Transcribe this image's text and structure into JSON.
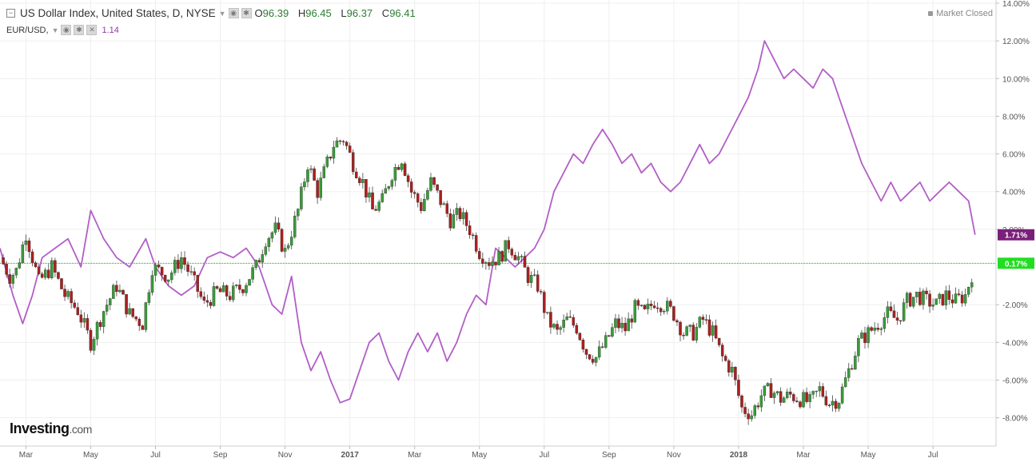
{
  "header": {
    "title": "US Dollar Index, United States, D, NYSE",
    "ohlc": [
      {
        "key": "O",
        "value": "96.39"
      },
      {
        "key": "H",
        "value": "96.45"
      },
      {
        "key": "L",
        "value": "96.37"
      },
      {
        "key": "C",
        "value": "96.41"
      }
    ],
    "overlay_label": "EUR/USD,",
    "overlay_value": "1.14",
    "market_status": "Market Closed"
  },
  "logo": {
    "main": "Investing",
    "suffix": ".com"
  },
  "colors": {
    "purple": "#b25ec7",
    "up_body": "#3a9a3a",
    "down_body": "#a82020",
    "badge_purple": "#7a1f7a",
    "badge_green": "#22dd22",
    "zero_line": "#1f9a1f"
  },
  "chart_data": {
    "type": "line",
    "y_axis": {
      "range": [
        -9.5,
        14.0
      ],
      "ticks": [
        {
          "v": 14,
          "label": "14.00%"
        },
        {
          "v": 12,
          "label": "12.00%"
        },
        {
          "v": 10,
          "label": "10.00%"
        },
        {
          "v": 8,
          "label": "8.00%"
        },
        {
          "v": 6,
          "label": "6.00%"
        },
        {
          "v": 4,
          "label": "4.00%"
        },
        {
          "v": 2,
          "label": "2.00%"
        },
        {
          "v": -2,
          "label": "-2.00%"
        },
        {
          "v": -4,
          "label": "-4.00%"
        },
        {
          "v": -6,
          "label": "-6.00%"
        },
        {
          "v": -8,
          "label": "-8.00%"
        }
      ]
    },
    "x_axis": {
      "range": [
        0,
        30.5
      ],
      "ticks": [
        {
          "m": 0.8,
          "label": "Mar"
        },
        {
          "m": 2.8,
          "label": "May"
        },
        {
          "m": 4.8,
          "label": "Jul"
        },
        {
          "m": 6.8,
          "label": "Sep"
        },
        {
          "m": 8.8,
          "label": "Nov"
        },
        {
          "m": 10.8,
          "label": "2017",
          "bold": true
        },
        {
          "m": 12.8,
          "label": "Mar"
        },
        {
          "m": 14.8,
          "label": "May"
        },
        {
          "m": 16.8,
          "label": "Jul"
        },
        {
          "m": 18.8,
          "label": "Sep"
        },
        {
          "m": 20.8,
          "label": "Nov"
        },
        {
          "m": 22.8,
          "label": "2018",
          "bold": true
        },
        {
          "m": 24.8,
          "label": "Mar"
        },
        {
          "m": 26.8,
          "label": "May"
        },
        {
          "m": 28.8,
          "label": "Jul"
        }
      ]
    },
    "zero_line": 0.2,
    "series": [
      {
        "name": "US Dollar Index",
        "style": "candlestick",
        "last_label": "0.17%",
        "points": [
          [
            0,
            0.5
          ],
          [
            0.3,
            -0.5
          ],
          [
            0.5,
            -0.2
          ],
          [
            0.8,
            1.8
          ],
          [
            1.2,
            -0.8
          ],
          [
            1.6,
            0.0
          ],
          [
            2.0,
            -1.5
          ],
          [
            2.4,
            -2.3
          ],
          [
            2.8,
            -4.0
          ],
          [
            3.2,
            -2.3
          ],
          [
            3.6,
            -1.0
          ],
          [
            4.0,
            -2.5
          ],
          [
            4.4,
            -3.0
          ],
          [
            4.7,
            0.0
          ],
          [
            5.2,
            -0.5
          ],
          [
            5.6,
            0.5
          ],
          [
            5.9,
            -0.5
          ],
          [
            6.3,
            -2.0
          ],
          [
            6.7,
            -1.3
          ],
          [
            7.1,
            -1.5
          ],
          [
            7.5,
            -1.0
          ],
          [
            7.9,
            0.0
          ],
          [
            8.2,
            1.5
          ],
          [
            8.5,
            2.0
          ],
          [
            8.8,
            0.8
          ],
          [
            9.2,
            3.0
          ],
          [
            9.5,
            5.5
          ],
          [
            9.8,
            4.0
          ],
          [
            10.0,
            5.0
          ],
          [
            10.3,
            6.5
          ],
          [
            10.6,
            6.8
          ],
          [
            10.9,
            5.5
          ],
          [
            11.2,
            4.5
          ],
          [
            11.5,
            3.0
          ],
          [
            11.8,
            3.5
          ],
          [
            12.1,
            5.0
          ],
          [
            12.4,
            5.8
          ],
          [
            12.7,
            4.0
          ],
          [
            13.0,
            3.2
          ],
          [
            13.3,
            4.5
          ],
          [
            13.6,
            3.5
          ],
          [
            13.9,
            2.5
          ],
          [
            14.2,
            2.8
          ],
          [
            14.5,
            2.0
          ],
          [
            14.8,
            0.8
          ],
          [
            15.1,
            0.3
          ],
          [
            15.4,
            0.5
          ],
          [
            15.7,
            1.2
          ],
          [
            16.0,
            0.5
          ],
          [
            16.3,
            -0.5
          ],
          [
            16.6,
            -1.0
          ],
          [
            16.9,
            -2.8
          ],
          [
            17.2,
            -3.5
          ],
          [
            17.5,
            -2.8
          ],
          [
            17.8,
            -3.2
          ],
          [
            18.1,
            -4.5
          ],
          [
            18.4,
            -4.8
          ],
          [
            18.7,
            -4.0
          ],
          [
            19.0,
            -3.0
          ],
          [
            19.3,
            -3.3
          ],
          [
            19.6,
            -2.2
          ],
          [
            19.9,
            -2.5
          ],
          [
            20.2,
            -1.8
          ],
          [
            20.5,
            -2.0
          ],
          [
            20.8,
            -2.5
          ],
          [
            21.1,
            -3.5
          ],
          [
            21.4,
            -3.5
          ],
          [
            21.7,
            -2.8
          ],
          [
            22.0,
            -3.5
          ],
          [
            22.3,
            -4.8
          ],
          [
            22.6,
            -5.5
          ],
          [
            22.9,
            -7.5
          ],
          [
            23.2,
            -7.8
          ],
          [
            23.5,
            -6.8
          ],
          [
            23.8,
            -6.5
          ],
          [
            24.1,
            -7.0
          ],
          [
            24.4,
            -6.8
          ],
          [
            24.7,
            -7.0
          ],
          [
            25.0,
            -7.2
          ],
          [
            25.3,
            -6.5
          ],
          [
            25.6,
            -7.2
          ],
          [
            25.9,
            -7.0
          ],
          [
            26.2,
            -5.5
          ],
          [
            26.5,
            -4.0
          ],
          [
            26.8,
            -3.5
          ],
          [
            27.1,
            -3.0
          ],
          [
            27.4,
            -2.5
          ],
          [
            27.7,
            -2.8
          ],
          [
            28.0,
            -1.8
          ],
          [
            28.3,
            -1.5
          ],
          [
            28.6,
            -1.8
          ],
          [
            28.9,
            -2.0
          ],
          [
            29.2,
            -1.5
          ],
          [
            29.5,
            -1.8
          ],
          [
            29.8,
            -1.5
          ],
          [
            30.1,
            0.17
          ]
        ]
      },
      {
        "name": "EUR/USD",
        "style": "line",
        "last_label": "1.71%",
        "points": [
          [
            0,
            1.0
          ],
          [
            0.4,
            -1.5
          ],
          [
            0.7,
            -3.0
          ],
          [
            1.0,
            -1.5
          ],
          [
            1.3,
            0.5
          ],
          [
            1.7,
            1.0
          ],
          [
            2.1,
            1.5
          ],
          [
            2.5,
            0.0
          ],
          [
            2.8,
            3.0
          ],
          [
            3.2,
            1.5
          ],
          [
            3.6,
            0.5
          ],
          [
            4.0,
            0.0
          ],
          [
            4.5,
            1.5
          ],
          [
            4.8,
            0.0
          ],
          [
            5.2,
            -1.0
          ],
          [
            5.6,
            -1.5
          ],
          [
            6.0,
            -1.0
          ],
          [
            6.4,
            0.5
          ],
          [
            6.8,
            0.8
          ],
          [
            7.2,
            0.5
          ],
          [
            7.6,
            1.0
          ],
          [
            8.0,
            0.0
          ],
          [
            8.4,
            -2.0
          ],
          [
            8.7,
            -2.5
          ],
          [
            9.0,
            -0.5
          ],
          [
            9.3,
            -4.0
          ],
          [
            9.6,
            -5.5
          ],
          [
            9.9,
            -4.5
          ],
          [
            10.2,
            -6.0
          ],
          [
            10.5,
            -7.2
          ],
          [
            10.8,
            -7.0
          ],
          [
            11.1,
            -5.5
          ],
          [
            11.4,
            -4.0
          ],
          [
            11.7,
            -3.5
          ],
          [
            12.0,
            -5.0
          ],
          [
            12.3,
            -6.0
          ],
          [
            12.6,
            -4.5
          ],
          [
            12.9,
            -3.5
          ],
          [
            13.2,
            -4.5
          ],
          [
            13.5,
            -3.5
          ],
          [
            13.8,
            -5.0
          ],
          [
            14.1,
            -4.0
          ],
          [
            14.4,
            -2.5
          ],
          [
            14.7,
            -1.5
          ],
          [
            15.0,
            -2.0
          ],
          [
            15.3,
            1.0
          ],
          [
            15.6,
            0.5
          ],
          [
            15.9,
            0.0
          ],
          [
            16.2,
            0.5
          ],
          [
            16.5,
            1.0
          ],
          [
            16.8,
            2.0
          ],
          [
            17.1,
            4.0
          ],
          [
            17.4,
            5.0
          ],
          [
            17.7,
            6.0
          ],
          [
            18.0,
            5.5
          ],
          [
            18.3,
            6.5
          ],
          [
            18.6,
            7.3
          ],
          [
            18.9,
            6.5
          ],
          [
            19.2,
            5.5
          ],
          [
            19.5,
            6.0
          ],
          [
            19.8,
            5.0
          ],
          [
            20.1,
            5.5
          ],
          [
            20.4,
            4.5
          ],
          [
            20.7,
            4.0
          ],
          [
            21.0,
            4.5
          ],
          [
            21.3,
            5.5
          ],
          [
            21.6,
            6.5
          ],
          [
            21.9,
            5.5
          ],
          [
            22.2,
            6.0
          ],
          [
            22.5,
            7.0
          ],
          [
            22.8,
            8.0
          ],
          [
            23.1,
            9.0
          ],
          [
            23.4,
            10.5
          ],
          [
            23.6,
            12.0
          ],
          [
            23.9,
            11.0
          ],
          [
            24.2,
            10.0
          ],
          [
            24.5,
            10.5
          ],
          [
            24.8,
            10.0
          ],
          [
            25.1,
            9.5
          ],
          [
            25.4,
            10.5
          ],
          [
            25.7,
            10.0
          ],
          [
            26.0,
            8.5
          ],
          [
            26.3,
            7.0
          ],
          [
            26.6,
            5.5
          ],
          [
            26.9,
            4.5
          ],
          [
            27.2,
            3.5
          ],
          [
            27.5,
            4.5
          ],
          [
            27.8,
            3.5
          ],
          [
            28.1,
            4.0
          ],
          [
            28.4,
            4.5
          ],
          [
            28.7,
            3.5
          ],
          [
            29.0,
            4.0
          ],
          [
            29.3,
            4.5
          ],
          [
            29.6,
            4.0
          ],
          [
            29.9,
            3.5
          ],
          [
            30.1,
            1.71
          ]
        ]
      }
    ]
  }
}
